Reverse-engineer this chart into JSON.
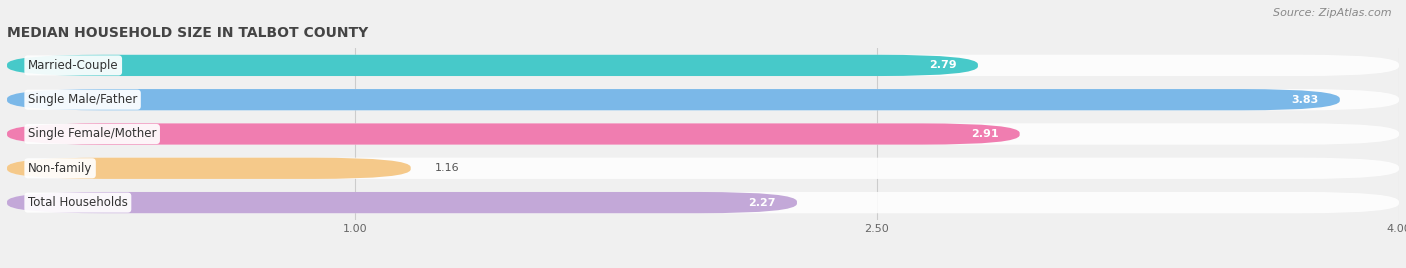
{
  "title": "MEDIAN HOUSEHOLD SIZE IN TALBOT COUNTY",
  "source": "Source: ZipAtlas.com",
  "categories": [
    "Married-Couple",
    "Single Male/Father",
    "Single Female/Mother",
    "Non-family",
    "Total Households"
  ],
  "values": [
    2.79,
    3.83,
    2.91,
    1.16,
    2.27
  ],
  "bar_colors": [
    "#47C9C9",
    "#7BB8E8",
    "#F07DB0",
    "#F5C98A",
    "#C3A8D8"
  ],
  "bar_bg_colors": [
    "#EAF8F8",
    "#EAF0FB",
    "#FDEAF4",
    "#FDF4EA",
    "#F2EAF8"
  ],
  "xmin": 0.0,
  "xmax": 4.0,
  "xticks": [
    1.0,
    2.5,
    4.0
  ],
  "title_fontsize": 10,
  "source_fontsize": 8,
  "label_fontsize": 8.5,
  "value_fontsize": 8,
  "background_color": "#f0f0f0",
  "bar_bg_color_global": "#e8e8e8"
}
